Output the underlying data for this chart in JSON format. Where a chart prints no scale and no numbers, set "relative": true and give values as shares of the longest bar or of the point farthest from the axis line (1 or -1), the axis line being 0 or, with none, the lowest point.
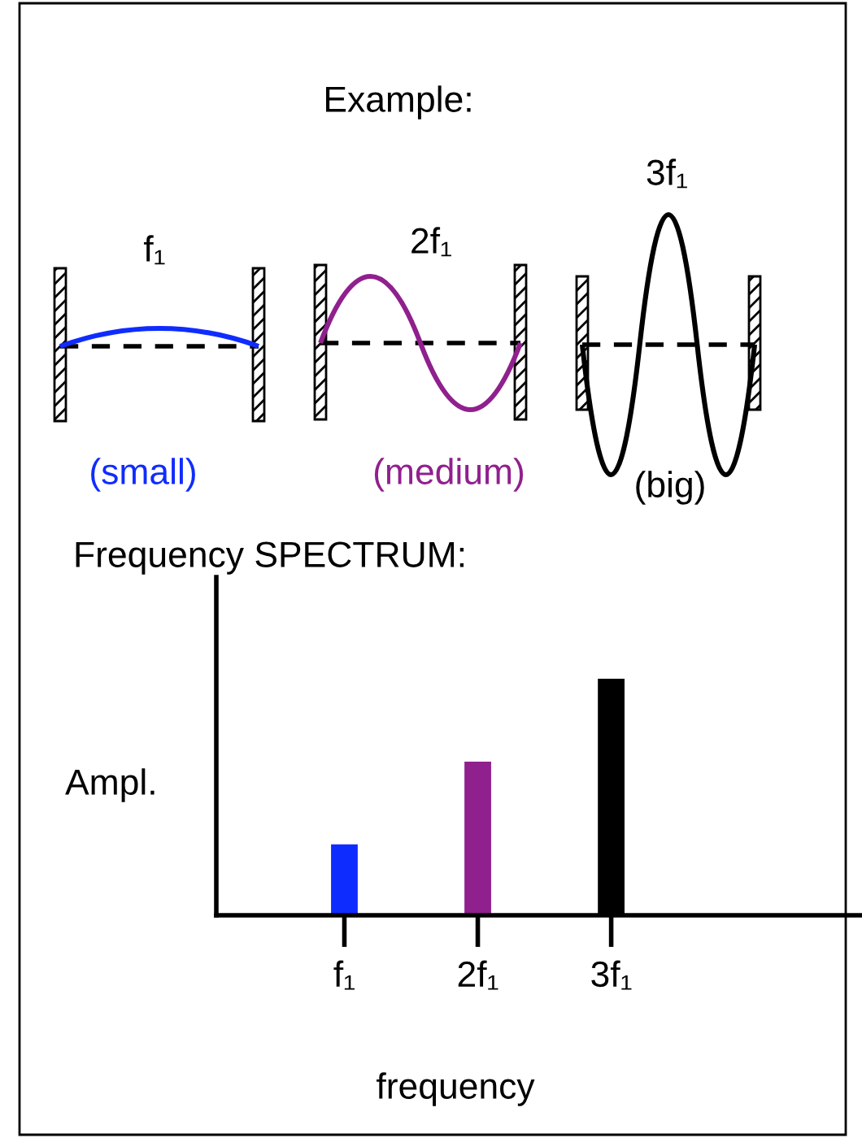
{
  "chart_data": {
    "type": "bar",
    "title": "Frequency SPECTRUM:",
    "ylabel": "Ampl.",
    "xlabel": "frequency",
    "categories": [
      "f₁",
      "2f₁",
      "3f₁"
    ],
    "values": [
      0.3,
      0.65,
      1
    ],
    "colors": [
      "#0f2cff",
      "#90208e",
      "#000000"
    ],
    "relative": true,
    "grid": false,
    "legend": false,
    "annotations": [
      "Example:",
      "f₁",
      "2f₁",
      "3f₁",
      "(small)",
      "(medium)",
      "(big)"
    ]
  }
}
